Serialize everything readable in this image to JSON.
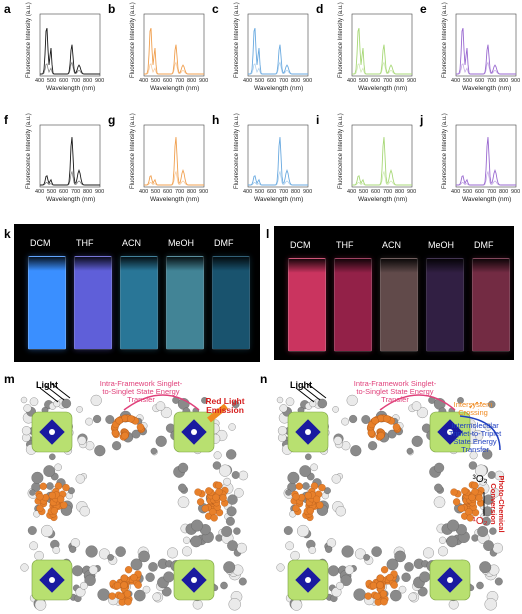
{
  "colors": {
    "black": "#1a1a1a",
    "orange": "#f0a050",
    "blue": "#6aaae0",
    "green": "#a8d878",
    "purple": "#9a6ad0"
  },
  "spectra": {
    "ylabel": "Fluorescence Intensity (a.u.)",
    "xlabel": "Wavelength (nm)",
    "xticks": [
      "400",
      "500",
      "600",
      "700",
      "800",
      "900"
    ],
    "panels": [
      {
        "label": "a",
        "color": "black"
      },
      {
        "label": "b",
        "color": "orange"
      },
      {
        "label": "c",
        "color": "blue"
      },
      {
        "label": "d",
        "color": "green"
      },
      {
        "label": "e",
        "color": "purple"
      },
      {
        "label": "f",
        "color": "black"
      },
      {
        "label": "g",
        "color": "orange"
      },
      {
        "label": "h",
        "color": "blue"
      },
      {
        "label": "i",
        "color": "green"
      },
      {
        "label": "j",
        "color": "purple"
      }
    ]
  },
  "photos": {
    "k": {
      "label": "k",
      "solvents": [
        "DCM",
        "THF",
        "ACN",
        "MeOH",
        "DMF"
      ]
    },
    "l": {
      "label": "l",
      "solvents": [
        "DCM",
        "THF",
        "ACN",
        "MeOH",
        "DMF"
      ]
    }
  },
  "schemes": {
    "m": {
      "label": "m",
      "light": "Light",
      "transfer": "Intra-Framework Singlet-to-Singlet State Energy Transfer",
      "emission": "Red Light Emission"
    },
    "n": {
      "label": "n",
      "light": "Light",
      "transfer": "Intra-Framework Singlet-to-Singlet State Energy Transfer",
      "isc": "Intersystem Crossing",
      "triplet": "Intermolecular Triplet-to-Triplet State Energy Transfer",
      "o2a": "³O₂",
      "o2b": "¹O₂",
      "conversion": "Photo-Chemical Conversion"
    }
  }
}
